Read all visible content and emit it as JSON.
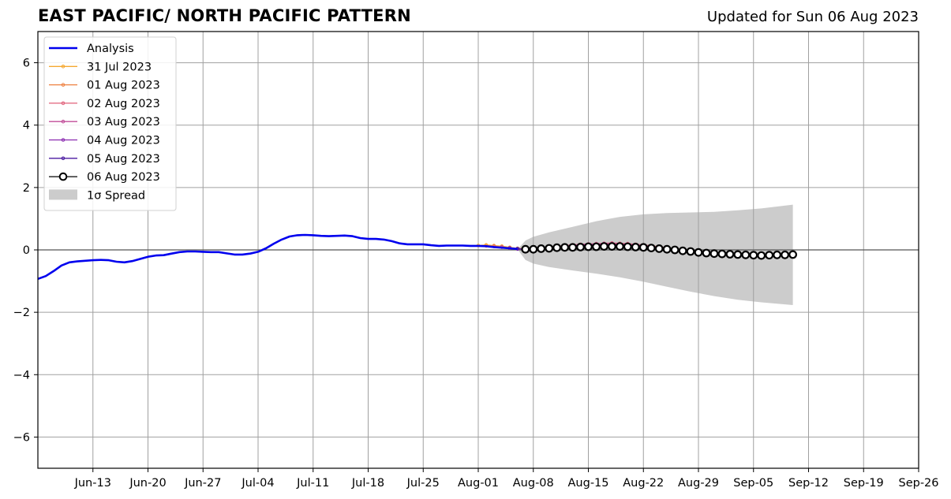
{
  "header": {
    "title": "EAST PACIFIC/ NORTH PACIFIC PATTERN",
    "updated": "Updated for Sun 06 Aug 2023"
  },
  "chart_data": {
    "type": "line",
    "title": "EAST PACIFIC/ NORTH PACIFIC PATTERN",
    "xlabel": "",
    "ylabel": "",
    "xlim": [
      "2023-06-06",
      "2023-09-26"
    ],
    "ylim": [
      -7,
      7
    ],
    "grid": true,
    "legend_position": "top-left",
    "x_ticks": [
      "Jun-13",
      "Jun-20",
      "Jun-27",
      "Jul-04",
      "Jul-11",
      "Jul-18",
      "Jul-25",
      "Aug-01",
      "Aug-08",
      "Aug-15",
      "Aug-22",
      "Aug-29",
      "Sep-05",
      "Sep-12",
      "Sep-19",
      "Sep-26"
    ],
    "x_tick_dates": [
      "2023-06-13",
      "2023-06-20",
      "2023-06-27",
      "2023-07-04",
      "2023-07-11",
      "2023-07-18",
      "2023-07-25",
      "2023-08-01",
      "2023-08-08",
      "2023-08-15",
      "2023-08-22",
      "2023-08-29",
      "2023-09-05",
      "2023-09-12",
      "2023-09-19",
      "2023-09-26"
    ],
    "y_ticks": [
      "6",
      "4",
      "2",
      "0",
      "−2",
      "−4",
      "−6"
    ],
    "y_tick_values": [
      6,
      4,
      2,
      0,
      -2,
      -4,
      -6
    ],
    "series": [
      {
        "name": "Analysis",
        "color": "#0000ee",
        "x": [
          "2023-06-06",
          "2023-06-07",
          "2023-06-08",
          "2023-06-09",
          "2023-06-10",
          "2023-06-11",
          "2023-06-12",
          "2023-06-13",
          "2023-06-14",
          "2023-06-15",
          "2023-06-16",
          "2023-06-17",
          "2023-06-18",
          "2023-06-19",
          "2023-06-20",
          "2023-06-21",
          "2023-06-22",
          "2023-06-23",
          "2023-06-24",
          "2023-06-25",
          "2023-06-26",
          "2023-06-27",
          "2023-06-28",
          "2023-06-29",
          "2023-06-30",
          "2023-07-01",
          "2023-07-02",
          "2023-07-03",
          "2023-07-04",
          "2023-07-05",
          "2023-07-06",
          "2023-07-07",
          "2023-07-08",
          "2023-07-09",
          "2023-07-10",
          "2023-07-11",
          "2023-07-12",
          "2023-07-13",
          "2023-07-14",
          "2023-07-15",
          "2023-07-16",
          "2023-07-17",
          "2023-07-18",
          "2023-07-19",
          "2023-07-20",
          "2023-07-21",
          "2023-07-22",
          "2023-07-23",
          "2023-07-24",
          "2023-07-25",
          "2023-07-26",
          "2023-07-27",
          "2023-07-28",
          "2023-07-29",
          "2023-07-30",
          "2023-07-31",
          "2023-08-01",
          "2023-08-02",
          "2023-08-03",
          "2023-08-04",
          "2023-08-05",
          "2023-08-06"
        ],
        "values": [
          -0.93,
          -0.84,
          -0.68,
          -0.5,
          -0.4,
          -0.37,
          -0.35,
          -0.33,
          -0.32,
          -0.33,
          -0.38,
          -0.4,
          -0.36,
          -0.29,
          -0.22,
          -0.18,
          -0.17,
          -0.12,
          -0.07,
          -0.05,
          -0.05,
          -0.06,
          -0.07,
          -0.07,
          -0.11,
          -0.15,
          -0.15,
          -0.12,
          -0.06,
          0.05,
          0.2,
          0.33,
          0.43,
          0.47,
          0.48,
          0.47,
          0.45,
          0.44,
          0.45,
          0.46,
          0.44,
          0.38,
          0.35,
          0.35,
          0.33,
          0.28,
          0.21,
          0.18,
          0.18,
          0.18,
          0.15,
          0.13,
          0.14,
          0.14,
          0.14,
          0.13,
          0.13,
          0.12,
          0.09,
          0.07,
          0.05,
          0.03
        ]
      },
      {
        "name": "31 Jul 2023",
        "color": "#f5a830",
        "x": [
          "2023-08-01",
          "2023-08-02",
          "2023-08-03",
          "2023-08-04",
          "2023-08-05",
          "2023-08-06",
          "2023-08-07",
          "2023-08-08",
          "2023-08-09",
          "2023-08-10",
          "2023-08-11",
          "2023-08-12",
          "2023-08-13",
          "2023-08-14",
          "2023-08-15",
          "2023-08-16",
          "2023-08-17",
          "2023-08-18",
          "2023-08-19",
          "2023-08-20",
          "2023-08-21",
          "2023-08-22",
          "2023-08-23",
          "2023-08-24",
          "2023-08-25",
          "2023-08-26",
          "2023-08-27",
          "2023-08-28",
          "2023-08-29",
          "2023-08-30",
          "2023-08-31",
          "2023-09-01",
          "2023-09-02",
          "2023-09-03",
          "2023-09-04"
        ],
        "values": [
          0.14,
          0.16,
          0.14,
          0.12,
          0.08,
          0.05,
          0.03,
          0.04,
          0.06,
          0.08,
          0.1,
          0.12,
          0.14,
          0.15,
          0.16,
          0.17,
          0.18,
          0.19,
          0.19,
          0.18,
          0.17,
          0.15,
          0.13,
          0.1,
          0.07,
          0.04,
          0.01,
          -0.02,
          -0.05,
          -0.08,
          -0.1,
          -0.12,
          -0.14,
          -0.15,
          -0.15
        ]
      },
      {
        "name": "01 Aug 2023",
        "color": "#ee8040",
        "x": [
          "2023-08-02",
          "2023-08-03",
          "2023-08-04",
          "2023-08-05",
          "2023-08-06",
          "2023-08-07",
          "2023-08-08",
          "2023-08-09",
          "2023-08-10",
          "2023-08-11",
          "2023-08-12",
          "2023-08-13",
          "2023-08-14",
          "2023-08-15",
          "2023-08-16",
          "2023-08-17",
          "2023-08-18",
          "2023-08-19",
          "2023-08-20",
          "2023-08-21",
          "2023-08-22",
          "2023-08-23",
          "2023-08-24",
          "2023-08-25",
          "2023-08-26",
          "2023-08-27",
          "2023-08-28",
          "2023-08-29",
          "2023-08-30",
          "2023-08-31",
          "2023-09-01",
          "2023-09-02",
          "2023-09-03",
          "2023-09-04",
          "2023-09-05"
        ],
        "values": [
          0.13,
          0.12,
          0.09,
          0.06,
          0.03,
          0.02,
          0.04,
          0.06,
          0.08,
          0.11,
          0.13,
          0.15,
          0.17,
          0.18,
          0.19,
          0.2,
          0.21,
          0.2,
          0.19,
          0.17,
          0.15,
          0.12,
          0.09,
          0.06,
          0.03,
          0.0,
          -0.03,
          -0.06,
          -0.09,
          -0.11,
          -0.13,
          -0.14,
          -0.15,
          -0.16,
          -0.16
        ]
      },
      {
        "name": "02 Aug 2023",
        "color": "#e0607a",
        "x": [
          "2023-08-03",
          "2023-08-04",
          "2023-08-05",
          "2023-08-06",
          "2023-08-07",
          "2023-08-08",
          "2023-08-09",
          "2023-08-10",
          "2023-08-11",
          "2023-08-12",
          "2023-08-13",
          "2023-08-14",
          "2023-08-15",
          "2023-08-16",
          "2023-08-17",
          "2023-08-18",
          "2023-08-19",
          "2023-08-20",
          "2023-08-21",
          "2023-08-22",
          "2023-08-23",
          "2023-08-24",
          "2023-08-25",
          "2023-08-26",
          "2023-08-27",
          "2023-08-28",
          "2023-08-29",
          "2023-08-30",
          "2023-08-31",
          "2023-09-01",
          "2023-09-02",
          "2023-09-03",
          "2023-09-04",
          "2023-09-05",
          "2023-09-06"
        ],
        "values": [
          0.11,
          0.09,
          0.06,
          0.03,
          0.02,
          0.04,
          0.07,
          0.09,
          0.12,
          0.14,
          0.16,
          0.18,
          0.19,
          0.2,
          0.21,
          0.22,
          0.21,
          0.2,
          0.18,
          0.16,
          0.13,
          0.1,
          0.07,
          0.04,
          0.01,
          -0.02,
          -0.05,
          -0.08,
          -0.1,
          -0.12,
          -0.14,
          -0.15,
          -0.16,
          -0.17,
          -0.17
        ]
      },
      {
        "name": "03 Aug 2023",
        "color": "#c04c98",
        "x": [
          "2023-08-04",
          "2023-08-05",
          "2023-08-06",
          "2023-08-07",
          "2023-08-08",
          "2023-08-09",
          "2023-08-10",
          "2023-08-11",
          "2023-08-12",
          "2023-08-13",
          "2023-08-14",
          "2023-08-15",
          "2023-08-16",
          "2023-08-17",
          "2023-08-18",
          "2023-08-19",
          "2023-08-20",
          "2023-08-21",
          "2023-08-22",
          "2023-08-23",
          "2023-08-24",
          "2023-08-25",
          "2023-08-26",
          "2023-08-27",
          "2023-08-28",
          "2023-08-29",
          "2023-08-30",
          "2023-08-31",
          "2023-09-01",
          "2023-09-02",
          "2023-09-03",
          "2023-09-04",
          "2023-09-05",
          "2023-09-06",
          "2023-09-07"
        ],
        "values": [
          0.09,
          0.06,
          0.03,
          0.02,
          0.04,
          0.06,
          0.09,
          0.11,
          0.13,
          0.15,
          0.17,
          0.18,
          0.19,
          0.2,
          0.2,
          0.19,
          0.18,
          0.16,
          0.14,
          0.11,
          0.08,
          0.05,
          0.02,
          -0.01,
          -0.04,
          -0.07,
          -0.09,
          -0.11,
          -0.13,
          -0.14,
          -0.15,
          -0.16,
          -0.17,
          -0.17,
          -0.17
        ]
      },
      {
        "name": "04 Aug 2023",
        "color": "#8a2ab0",
        "x": [
          "2023-08-05",
          "2023-08-06",
          "2023-08-07",
          "2023-08-08",
          "2023-08-09",
          "2023-08-10",
          "2023-08-11",
          "2023-08-12",
          "2023-08-13",
          "2023-08-14",
          "2023-08-15",
          "2023-08-16",
          "2023-08-17",
          "2023-08-18",
          "2023-08-19",
          "2023-08-20",
          "2023-08-21",
          "2023-08-22",
          "2023-08-23",
          "2023-08-24",
          "2023-08-25",
          "2023-08-26",
          "2023-08-27",
          "2023-08-28",
          "2023-08-29",
          "2023-08-30",
          "2023-08-31",
          "2023-09-01",
          "2023-09-02",
          "2023-09-03",
          "2023-09-04",
          "2023-09-05",
          "2023-09-06",
          "2023-09-07",
          "2023-09-08"
        ],
        "values": [
          0.06,
          0.03,
          0.02,
          0.03,
          0.05,
          0.07,
          0.09,
          0.11,
          0.13,
          0.15,
          0.16,
          0.17,
          0.17,
          0.17,
          0.16,
          0.15,
          0.14,
          0.12,
          0.1,
          0.07,
          0.04,
          0.01,
          -0.02,
          -0.05,
          -0.08,
          -0.1,
          -0.12,
          -0.14,
          -0.15,
          -0.16,
          -0.17,
          -0.17,
          -0.17,
          -0.17,
          -0.16
        ]
      },
      {
        "name": "05 Aug 2023",
        "color": "#4a1aa0",
        "x": [
          "2023-08-06",
          "2023-08-07",
          "2023-08-08",
          "2023-08-09",
          "2023-08-10",
          "2023-08-11",
          "2023-08-12",
          "2023-08-13",
          "2023-08-14",
          "2023-08-15",
          "2023-08-16",
          "2023-08-17",
          "2023-08-18",
          "2023-08-19",
          "2023-08-20",
          "2023-08-21",
          "2023-08-22",
          "2023-08-23",
          "2023-08-24",
          "2023-08-25",
          "2023-08-26",
          "2023-08-27",
          "2023-08-28",
          "2023-08-29",
          "2023-08-30",
          "2023-08-31",
          "2023-09-01",
          "2023-09-02",
          "2023-09-03",
          "2023-09-04",
          "2023-09-05",
          "2023-09-06",
          "2023-09-07",
          "2023-09-08",
          "2023-09-09"
        ],
        "values": [
          0.04,
          0.02,
          0.03,
          0.04,
          0.06,
          0.08,
          0.1,
          0.11,
          0.12,
          0.13,
          0.14,
          0.14,
          0.13,
          0.12,
          0.11,
          0.1,
          0.08,
          0.06,
          0.04,
          0.02,
          -0.01,
          -0.03,
          -0.06,
          -0.08,
          -0.1,
          -0.12,
          -0.13,
          -0.14,
          -0.15,
          -0.16,
          -0.16,
          -0.16,
          -0.16,
          -0.16,
          -0.15
        ]
      },
      {
        "name": "06 Aug 2023",
        "color": "#000000",
        "marker": "open-circle",
        "x": [
          "2023-08-07",
          "2023-08-08",
          "2023-08-09",
          "2023-08-10",
          "2023-08-11",
          "2023-08-12",
          "2023-08-13",
          "2023-08-14",
          "2023-08-15",
          "2023-08-16",
          "2023-08-17",
          "2023-08-18",
          "2023-08-19",
          "2023-08-20",
          "2023-08-21",
          "2023-08-22",
          "2023-08-23",
          "2023-08-24",
          "2023-08-25",
          "2023-08-26",
          "2023-08-27",
          "2023-08-28",
          "2023-08-29",
          "2023-08-30",
          "2023-08-31",
          "2023-09-01",
          "2023-09-02",
          "2023-09-03",
          "2023-09-04",
          "2023-09-05",
          "2023-09-06",
          "2023-09-07",
          "2023-09-08",
          "2023-09-09",
          "2023-09-10"
        ],
        "values": [
          0.02,
          0.02,
          0.04,
          0.05,
          0.07,
          0.08,
          0.08,
          0.09,
          0.1,
          0.1,
          0.11,
          0.11,
          0.11,
          0.1,
          0.09,
          0.08,
          0.06,
          0.04,
          0.02,
          0.0,
          -0.03,
          -0.05,
          -0.08,
          -0.1,
          -0.12,
          -0.13,
          -0.14,
          -0.15,
          -0.16,
          -0.17,
          -0.18,
          -0.17,
          -0.16,
          -0.16,
          -0.15
        ]
      }
    ],
    "spread": {
      "name": "1σ Spread",
      "color": "#cccccc",
      "x": [
        "2023-08-06",
        "2023-08-07",
        "2023-08-08",
        "2023-08-10",
        "2023-08-13",
        "2023-08-16",
        "2023-08-19",
        "2023-08-22",
        "2023-08-25",
        "2023-08-28",
        "2023-08-31",
        "2023-09-03",
        "2023-09-06",
        "2023-09-10"
      ],
      "upper": [
        0.02,
        0.3,
        0.42,
        0.56,
        0.74,
        0.92,
        1.06,
        1.14,
        1.18,
        1.2,
        1.22,
        1.27,
        1.33,
        1.45
      ],
      "lower": [
        0.02,
        -0.32,
        -0.44,
        -0.55,
        -0.66,
        -0.76,
        -0.88,
        -1.02,
        -1.18,
        -1.34,
        -1.48,
        -1.6,
        -1.68,
        -1.77
      ]
    },
    "legend": [
      "Analysis",
      "31 Jul 2023",
      "01 Aug 2023",
      "02 Aug 2023",
      "03 Aug 2023",
      "04 Aug 2023",
      "05 Aug 2023",
      "06 Aug 2023",
      "1σ Spread"
    ]
  }
}
